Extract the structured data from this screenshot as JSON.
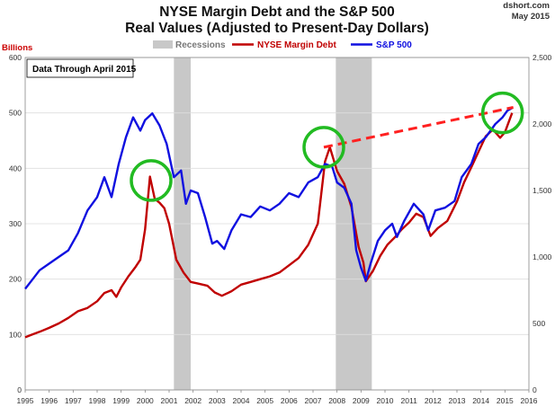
{
  "header": {
    "title_line1": "NYSE Margin Debt and the S&P 500",
    "title_line2": "Real Values (Adjusted to Present-Day Dollars)",
    "source": "dshort.com",
    "date": "May 2015"
  },
  "chart_data": {
    "type": "line",
    "title": "NYSE Margin Debt and the S&P 500 — Real Values (Adjusted to Present-Day Dollars)",
    "note": "Data Through April 2015",
    "x": {
      "min": 1995,
      "max": 2016,
      "ticks": [
        "1995",
        "1996",
        "1997",
        "1998",
        "1999",
        "2000",
        "2001",
        "2002",
        "2003",
        "2004",
        "2005",
        "2006",
        "2007",
        "2008",
        "2009",
        "2010",
        "2011",
        "2012",
        "2013",
        "2014",
        "2015",
        "2016"
      ]
    },
    "y_left": {
      "label": "Billions",
      "min": 0,
      "max": 600,
      "ticks": [
        "0",
        "100",
        "200",
        "300",
        "400",
        "500",
        "600"
      ]
    },
    "y_right": {
      "min": 0,
      "max": 2500,
      "ticks": [
        "0",
        "500",
        "1,000",
        "1,500",
        "2,000",
        "2,500"
      ]
    },
    "legend": [
      {
        "name": "Recessions",
        "color": "#c8c8c8"
      },
      {
        "name": "NYSE Margin Debt",
        "color": "#c00000"
      },
      {
        "name": "S&P 500",
        "color": "#1010e0"
      }
    ],
    "recessions": [
      [
        2001.2,
        2001.9
      ],
      [
        2007.95,
        2009.45
      ]
    ],
    "series": [
      {
        "name": "NYSE Margin Debt",
        "axis": "left",
        "color": "#c00000",
        "points": [
          [
            1995.0,
            95
          ],
          [
            1995.3,
            100
          ],
          [
            1995.6,
            105
          ],
          [
            1996.0,
            112
          ],
          [
            1996.4,
            120
          ],
          [
            1996.8,
            130
          ],
          [
            1997.2,
            142
          ],
          [
            1997.6,
            148
          ],
          [
            1998.0,
            160
          ],
          [
            1998.3,
            175
          ],
          [
            1998.6,
            180
          ],
          [
            1998.8,
            168
          ],
          [
            1999.0,
            185
          ],
          [
            1999.3,
            205
          ],
          [
            1999.6,
            222
          ],
          [
            1999.8,
            235
          ],
          [
            2000.0,
            290
          ],
          [
            2000.2,
            385
          ],
          [
            2000.4,
            345
          ],
          [
            2000.6,
            338
          ],
          [
            2000.8,
            328
          ],
          [
            2001.0,
            300
          ],
          [
            2001.3,
            235
          ],
          [
            2001.6,
            212
          ],
          [
            2001.9,
            195
          ],
          [
            2002.2,
            192
          ],
          [
            2002.6,
            188
          ],
          [
            2002.9,
            176
          ],
          [
            2003.2,
            170
          ],
          [
            2003.6,
            178
          ],
          [
            2004.0,
            190
          ],
          [
            2004.4,
            195
          ],
          [
            2004.8,
            200
          ],
          [
            2005.2,
            205
          ],
          [
            2005.6,
            212
          ],
          [
            2006.0,
            225
          ],
          [
            2006.4,
            238
          ],
          [
            2006.8,
            262
          ],
          [
            2007.2,
            300
          ],
          [
            2007.5,
            412
          ],
          [
            2007.7,
            438
          ],
          [
            2008.0,
            395
          ],
          [
            2008.3,
            372
          ],
          [
            2008.6,
            330
          ],
          [
            2008.9,
            258
          ],
          [
            2009.1,
            230
          ],
          [
            2009.2,
            196
          ],
          [
            2009.5,
            215
          ],
          [
            2009.8,
            242
          ],
          [
            2010.1,
            262
          ],
          [
            2010.4,
            275
          ],
          [
            2010.7,
            290
          ],
          [
            2011.0,
            302
          ],
          [
            2011.3,
            318
          ],
          [
            2011.6,
            312
          ],
          [
            2011.9,
            278
          ],
          [
            2012.2,
            292
          ],
          [
            2012.6,
            305
          ],
          [
            2013.0,
            340
          ],
          [
            2013.3,
            375
          ],
          [
            2013.6,
            402
          ],
          [
            2013.9,
            430
          ],
          [
            2014.2,
            458
          ],
          [
            2014.5,
            470
          ],
          [
            2014.8,
            455
          ],
          [
            2015.0,
            465
          ],
          [
            2015.3,
            500
          ]
        ]
      },
      {
        "name": "S&P 500",
        "axis": "right",
        "color": "#1010e0",
        "points": [
          [
            1995.0,
            760
          ],
          [
            1995.3,
            830
          ],
          [
            1995.6,
            900
          ],
          [
            1996.0,
            950
          ],
          [
            1996.4,
            1000
          ],
          [
            1996.8,
            1050
          ],
          [
            1997.2,
            1180
          ],
          [
            1997.6,
            1350
          ],
          [
            1998.0,
            1450
          ],
          [
            1998.3,
            1600
          ],
          [
            1998.6,
            1450
          ],
          [
            1998.9,
            1700
          ],
          [
            1999.2,
            1900
          ],
          [
            1999.5,
            2050
          ],
          [
            1999.8,
            1950
          ],
          [
            2000.0,
            2030
          ],
          [
            2000.3,
            2080
          ],
          [
            2000.6,
            1990
          ],
          [
            2000.9,
            1850
          ],
          [
            2001.2,
            1600
          ],
          [
            2001.5,
            1650
          ],
          [
            2001.7,
            1400
          ],
          [
            2001.9,
            1500
          ],
          [
            2002.2,
            1480
          ],
          [
            2002.5,
            1300
          ],
          [
            2002.8,
            1100
          ],
          [
            2003.0,
            1120
          ],
          [
            2003.3,
            1060
          ],
          [
            2003.6,
            1200
          ],
          [
            2004.0,
            1320
          ],
          [
            2004.4,
            1300
          ],
          [
            2004.8,
            1380
          ],
          [
            2005.2,
            1350
          ],
          [
            2005.6,
            1400
          ],
          [
            2006.0,
            1480
          ],
          [
            2006.4,
            1450
          ],
          [
            2006.8,
            1560
          ],
          [
            2007.2,
            1600
          ],
          [
            2007.5,
            1700
          ],
          [
            2007.8,
            1680
          ],
          [
            2008.0,
            1560
          ],
          [
            2008.3,
            1520
          ],
          [
            2008.6,
            1400
          ],
          [
            2008.8,
            1050
          ],
          [
            2009.0,
            920
          ],
          [
            2009.2,
            820
          ],
          [
            2009.4,
            950
          ],
          [
            2009.7,
            1120
          ],
          [
            2010.0,
            1200
          ],
          [
            2010.3,
            1250
          ],
          [
            2010.5,
            1150
          ],
          [
            2010.8,
            1270
          ],
          [
            2011.2,
            1400
          ],
          [
            2011.6,
            1320
          ],
          [
            2011.8,
            1200
          ],
          [
            2012.1,
            1350
          ],
          [
            2012.5,
            1370
          ],
          [
            2012.9,
            1420
          ],
          [
            2013.2,
            1600
          ],
          [
            2013.6,
            1700
          ],
          [
            2013.9,
            1850
          ],
          [
            2014.2,
            1900
          ],
          [
            2014.6,
            2000
          ],
          [
            2014.9,
            2050
          ],
          [
            2015.1,
            2100
          ],
          [
            2015.3,
            2120
          ]
        ]
      }
    ],
    "trendline": {
      "axis": "left",
      "from": [
        2007.45,
        438
      ],
      "to": [
        2015.35,
        510
      ],
      "color": "#ff2020",
      "style": "dashed"
    },
    "highlights": [
      {
        "x": 2000.25,
        "y": 378,
        "axis": "left"
      },
      {
        "x": 2007.45,
        "y": 438,
        "axis": "left"
      },
      {
        "x": 2014.9,
        "y": 500,
        "axis": "left"
      }
    ]
  }
}
